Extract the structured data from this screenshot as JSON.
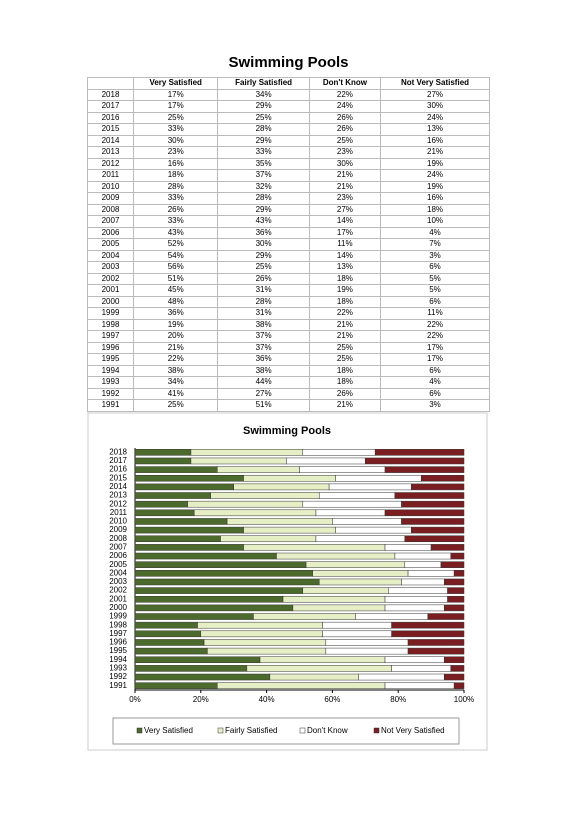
{
  "title": "Swimming Pools",
  "table": {
    "columns": [
      "Very Satisfied",
      "Fairly Satisfied",
      "Don't Know",
      "Not Very Satisfied"
    ],
    "rows": [
      [
        "2018",
        "17%",
        "34%",
        "22%",
        "27%"
      ],
      [
        "2017",
        "17%",
        "29%",
        "24%",
        "30%"
      ],
      [
        "2016",
        "25%",
        "25%",
        "26%",
        "24%"
      ],
      [
        "2015",
        "33%",
        "28%",
        "26%",
        "13%"
      ],
      [
        "2014",
        "30%",
        "29%",
        "25%",
        "16%"
      ],
      [
        "2013",
        "23%",
        "33%",
        "23%",
        "21%"
      ],
      [
        "2012",
        "16%",
        "35%",
        "30%",
        "19%"
      ],
      [
        "2011",
        "18%",
        "37%",
        "21%",
        "24%"
      ],
      [
        "2010",
        "28%",
        "32%",
        "21%",
        "19%"
      ],
      [
        "2009",
        "33%",
        "28%",
        "23%",
        "16%"
      ],
      [
        "2008",
        "26%",
        "29%",
        "27%",
        "18%"
      ],
      [
        "2007",
        "33%",
        "43%",
        "14%",
        "10%"
      ],
      [
        "2006",
        "43%",
        "36%",
        "17%",
        "4%"
      ],
      [
        "2005",
        "52%",
        "30%",
        "11%",
        "7%"
      ],
      [
        "2004",
        "54%",
        "29%",
        "14%",
        "3%"
      ],
      [
        "2003",
        "56%",
        "25%",
        "13%",
        "6%"
      ],
      [
        "2002",
        "51%",
        "26%",
        "18%",
        "5%"
      ],
      [
        "2001",
        "45%",
        "31%",
        "19%",
        "5%"
      ],
      [
        "2000",
        "48%",
        "28%",
        "18%",
        "6%"
      ],
      [
        "1999",
        "36%",
        "31%",
        "22%",
        "11%"
      ],
      [
        "1998",
        "19%",
        "38%",
        "21%",
        "22%"
      ],
      [
        "1997",
        "20%",
        "37%",
        "21%",
        "22%"
      ],
      [
        "1996",
        "21%",
        "37%",
        "25%",
        "17%"
      ],
      [
        "1995",
        "22%",
        "36%",
        "25%",
        "17%"
      ],
      [
        "1994",
        "38%",
        "38%",
        "18%",
        "6%"
      ],
      [
        "1993",
        "34%",
        "44%",
        "18%",
        "4%"
      ],
      [
        "1992",
        "41%",
        "27%",
        "26%",
        "6%"
      ],
      [
        "1991",
        "25%",
        "51%",
        "21%",
        "3%"
      ]
    ]
  },
  "chart_data": {
    "type": "stacked-bar-horizontal",
    "title": "Swimming Pools",
    "categories": [
      "2018",
      "2017",
      "2016",
      "2015",
      "2014",
      "2013",
      "2012",
      "2011",
      "2010",
      "2009",
      "2008",
      "2007",
      "2006",
      "2005",
      "2004",
      "2003",
      "2002",
      "2001",
      "2000",
      "1999",
      "1998",
      "1997",
      "1996",
      "1995",
      "1994",
      "1993",
      "1992",
      "1991"
    ],
    "series": [
      {
        "name": "Very Satisfied",
        "color": "#4b6a2c",
        "values": [
          17,
          17,
          25,
          33,
          30,
          23,
          16,
          18,
          28,
          33,
          26,
          33,
          43,
          52,
          54,
          56,
          51,
          45,
          48,
          36,
          19,
          20,
          21,
          22,
          38,
          34,
          41,
          25
        ]
      },
      {
        "name": "Fairly Satisfied",
        "color": "#e6eec6",
        "values": [
          34,
          29,
          25,
          28,
          29,
          33,
          35,
          37,
          32,
          28,
          29,
          43,
          36,
          30,
          29,
          25,
          26,
          31,
          28,
          31,
          38,
          37,
          37,
          36,
          38,
          44,
          27,
          51
        ]
      },
      {
        "name": "Don't Know",
        "color": "#ffffff",
        "values": [
          22,
          24,
          26,
          26,
          25,
          23,
          30,
          21,
          21,
          23,
          27,
          14,
          17,
          11,
          14,
          13,
          18,
          19,
          18,
          22,
          21,
          21,
          25,
          25,
          18,
          18,
          26,
          21
        ]
      },
      {
        "name": "Not Very Satisfied",
        "color": "#7b1e22",
        "values": [
          27,
          30,
          24,
          13,
          16,
          21,
          19,
          24,
          19,
          16,
          18,
          10,
          4,
          7,
          3,
          6,
          5,
          5,
          6,
          11,
          22,
          22,
          17,
          17,
          6,
          4,
          6,
          3
        ]
      }
    ],
    "xlim": [
      0,
      100
    ],
    "xticks": [
      {
        "value": 0,
        "label": "0%"
      },
      {
        "value": 20,
        "label": "20%"
      },
      {
        "value": 40,
        "label": "40%"
      },
      {
        "value": 60,
        "label": "60%"
      },
      {
        "value": 80,
        "label": "80%"
      },
      {
        "value": 100,
        "label": "100%"
      }
    ],
    "legend": "bottom"
  }
}
